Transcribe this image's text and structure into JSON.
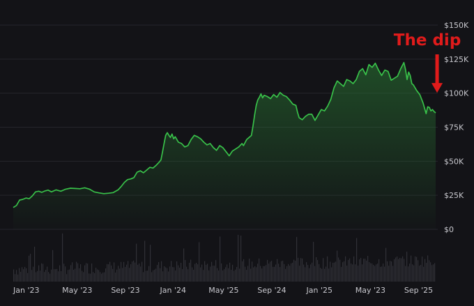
{
  "chart_data": {
    "type": "area",
    "title": "",
    "xlabel": "",
    "ylabel": "",
    "ylim": [
      0,
      150000
    ],
    "y_ticks": [
      {
        "value": 150000,
        "label": "$150K"
      },
      {
        "value": 125000,
        "label": "$125K"
      },
      {
        "value": 100000,
        "label": "$100K"
      },
      {
        "value": 75000,
        "label": "$75K"
      },
      {
        "value": 50000,
        "label": "$50K"
      },
      {
        "value": 25000,
        "label": "$25K"
      },
      {
        "value": 0,
        "label": "$0"
      }
    ],
    "x_ticks": [
      "Jan '23",
      "May '23",
      "Sep '23",
      "Jan '24",
      "May '25",
      "Sep '24",
      "Jan '25",
      "May '23",
      "Sep '25"
    ],
    "x_tick_positions": [
      0.0,
      0.154,
      0.308,
      0.462,
      0.615,
      0.769,
      0.923,
      1.077,
      1.231
    ],
    "grid": true,
    "legend": "none",
    "line_color": "#39c24a",
    "area_color": "#2a6e32",
    "volume_color": "#4a4a52",
    "price_series": [
      [
        0.0,
        16000
      ],
      [
        0.01,
        17500
      ],
      [
        0.02,
        21500
      ],
      [
        0.03,
        22000
      ],
      [
        0.04,
        23000
      ],
      [
        0.05,
        22500
      ],
      [
        0.06,
        24500
      ],
      [
        0.07,
        27500
      ],
      [
        0.08,
        28000
      ],
      [
        0.09,
        27200
      ],
      [
        0.1,
        28200
      ],
      [
        0.11,
        28800
      ],
      [
        0.12,
        27500
      ],
      [
        0.135,
        29000
      ],
      [
        0.15,
        28000
      ],
      [
        0.165,
        29500
      ],
      [
        0.18,
        30200
      ],
      [
        0.195,
        30000
      ],
      [
        0.21,
        29800
      ],
      [
        0.225,
        30500
      ],
      [
        0.24,
        29500
      ],
      [
        0.255,
        27500
      ],
      [
        0.27,
        26800
      ],
      [
        0.285,
        26200
      ],
      [
        0.3,
        26500
      ],
      [
        0.315,
        27000
      ],
      [
        0.33,
        29000
      ],
      [
        0.34,
        31500
      ],
      [
        0.35,
        34500
      ],
      [
        0.36,
        36500
      ],
      [
        0.37,
        37000
      ],
      [
        0.38,
        38000
      ],
      [
        0.39,
        42000
      ],
      [
        0.4,
        43000
      ],
      [
        0.41,
        41500
      ],
      [
        0.42,
        43500
      ],
      [
        0.43,
        45500
      ],
      [
        0.44,
        45000
      ],
      [
        0.45,
        47000
      ],
      [
        0.46,
        49500
      ],
      [
        0.465,
        51000
      ],
      [
        0.47,
        57000
      ],
      [
        0.475,
        63000
      ],
      [
        0.48,
        69000
      ],
      [
        0.485,
        71000
      ],
      [
        0.49,
        69000
      ],
      [
        0.495,
        67500
      ],
      [
        0.5,
        70000
      ],
      [
        0.505,
        66500
      ],
      [
        0.51,
        68000
      ],
      [
        0.52,
        64000
      ],
      [
        0.53,
        63000
      ],
      [
        0.54,
        60500
      ],
      [
        0.55,
        61500
      ],
      [
        0.56,
        66000
      ],
      [
        0.57,
        69000
      ],
      [
        0.58,
        68000
      ],
      [
        0.59,
        66500
      ],
      [
        0.6,
        64000
      ],
      [
        0.61,
        62000
      ],
      [
        0.62,
        63000
      ],
      [
        0.63,
        60000
      ],
      [
        0.64,
        58000
      ],
      [
        0.65,
        61500
      ],
      [
        0.66,
        60000
      ],
      [
        0.67,
        57000
      ],
      [
        0.68,
        54000
      ],
      [
        0.69,
        57500
      ],
      [
        0.7,
        59000
      ],
      [
        0.71,
        60500
      ],
      [
        0.72,
        63000
      ],
      [
        0.725,
        61500
      ],
      [
        0.735,
        66000
      ],
      [
        0.745,
        68000
      ],
      [
        0.75,
        69000
      ],
      [
        0.755,
        76000
      ],
      [
        0.76,
        84000
      ],
      [
        0.765,
        91000
      ],
      [
        0.77,
        95000
      ],
      [
        0.775,
        97000
      ],
      [
        0.78,
        99500
      ],
      [
        0.785,
        96500
      ],
      [
        0.79,
        98500
      ],
      [
        0.8,
        97500
      ],
      [
        0.81,
        96000
      ],
      [
        0.82,
        99000
      ],
      [
        0.83,
        97000
      ],
      [
        0.84,
        100500
      ],
      [
        0.85,
        98500
      ],
      [
        0.86,
        97500
      ],
      [
        0.87,
        95000
      ],
      [
        0.88,
        92000
      ],
      [
        0.89,
        91000
      ],
      [
        0.895,
        86000
      ],
      [
        0.9,
        82000
      ],
      [
        0.91,
        80500
      ],
      [
        0.92,
        83000
      ],
      [
        0.93,
        84500
      ],
      [
        0.94,
        84500
      ],
      [
        0.95,
        80000
      ],
      [
        0.96,
        84000
      ],
      [
        0.97,
        88000
      ],
      [
        0.98,
        87000
      ],
      [
        0.99,
        90500
      ],
      [
        1.0,
        95500
      ],
      [
        1.01,
        104000
      ],
      [
        1.02,
        109000
      ],
      [
        1.03,
        107000
      ],
      [
        1.04,
        105000
      ],
      [
        1.05,
        110000
      ],
      [
        1.06,
        109000
      ],
      [
        1.07,
        107000
      ],
      [
        1.08,
        110000
      ],
      [
        1.09,
        116000
      ],
      [
        1.1,
        118000
      ],
      [
        1.11,
        113500
      ],
      [
        1.12,
        121000
      ],
      [
        1.13,
        119000
      ],
      [
        1.14,
        122000
      ],
      [
        1.15,
        117000
      ],
      [
        1.16,
        113000
      ],
      [
        1.17,
        117000
      ],
      [
        1.18,
        116000
      ],
      [
        1.19,
        109500
      ],
      [
        1.2,
        111000
      ],
      [
        1.21,
        112500
      ],
      [
        1.22,
        118000
      ],
      [
        1.23,
        122500
      ],
      [
        1.235,
        117500
      ],
      [
        1.24,
        110000
      ],
      [
        1.245,
        115500
      ],
      [
        1.25,
        113000
      ],
      [
        1.255,
        107000
      ],
      [
        1.26,
        106000
      ],
      [
        1.27,
        102000
      ],
      [
        1.28,
        99000
      ],
      [
        1.29,
        93000
      ],
      [
        1.295,
        89000
      ],
      [
        1.3,
        85000
      ],
      [
        1.305,
        90000
      ],
      [
        1.31,
        89500
      ],
      [
        1.315,
        87000
      ],
      [
        1.32,
        88000
      ],
      [
        1.325,
        86500
      ],
      [
        1.33,
        85500
      ]
    ],
    "annotations": [
      {
        "text": "The dip",
        "color": "#e01b1b",
        "points_to": [
          1.295,
          89000
        ]
      }
    ]
  }
}
